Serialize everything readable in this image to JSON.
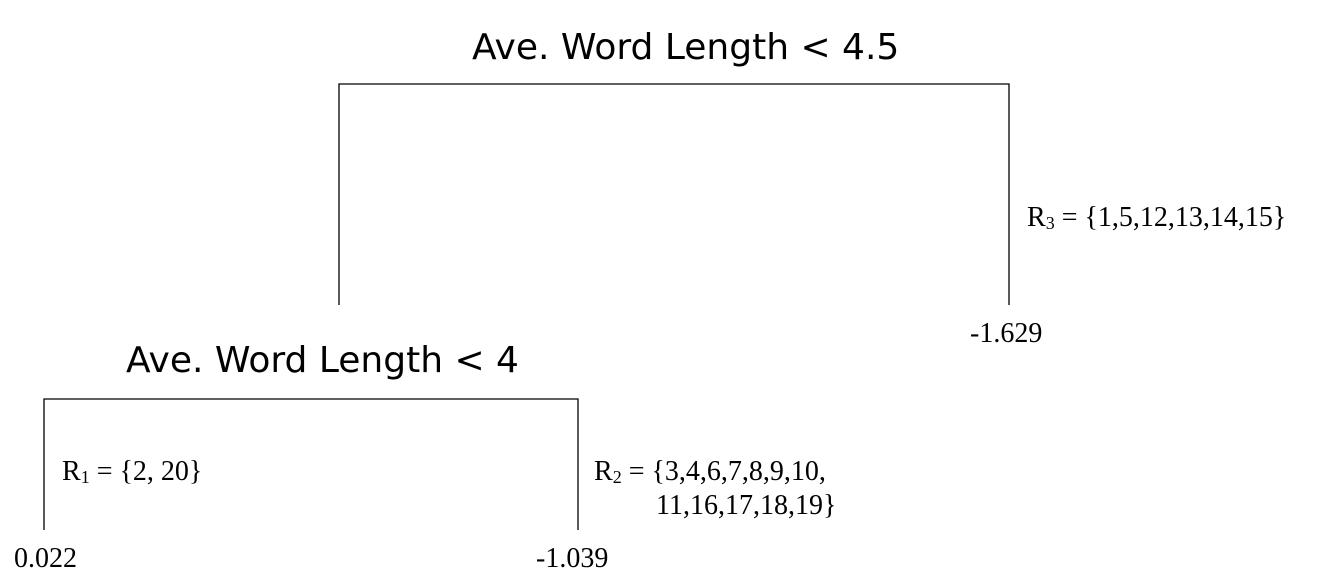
{
  "tree": {
    "root_split": {
      "label": "Ave. Word Length < 4.5"
    },
    "child_split": {
      "label": "Ave. Word Length < 4"
    },
    "leaves": [
      {
        "region_letter": "R",
        "region_index": "1",
        "region_set": " = {2, 20}",
        "value": "0.022"
      },
      {
        "region_letter": "R",
        "region_index": "2",
        "region_set_line1": " = {3,4,6,7,8,9,10,",
        "region_set_line2": "11,16,17,18,19}",
        "value": "-1.039"
      },
      {
        "region_letter": "R",
        "region_index": "3",
        "region_set": " = {1,5,12,13,14,15}",
        "value": "-1.629"
      }
    ]
  }
}
